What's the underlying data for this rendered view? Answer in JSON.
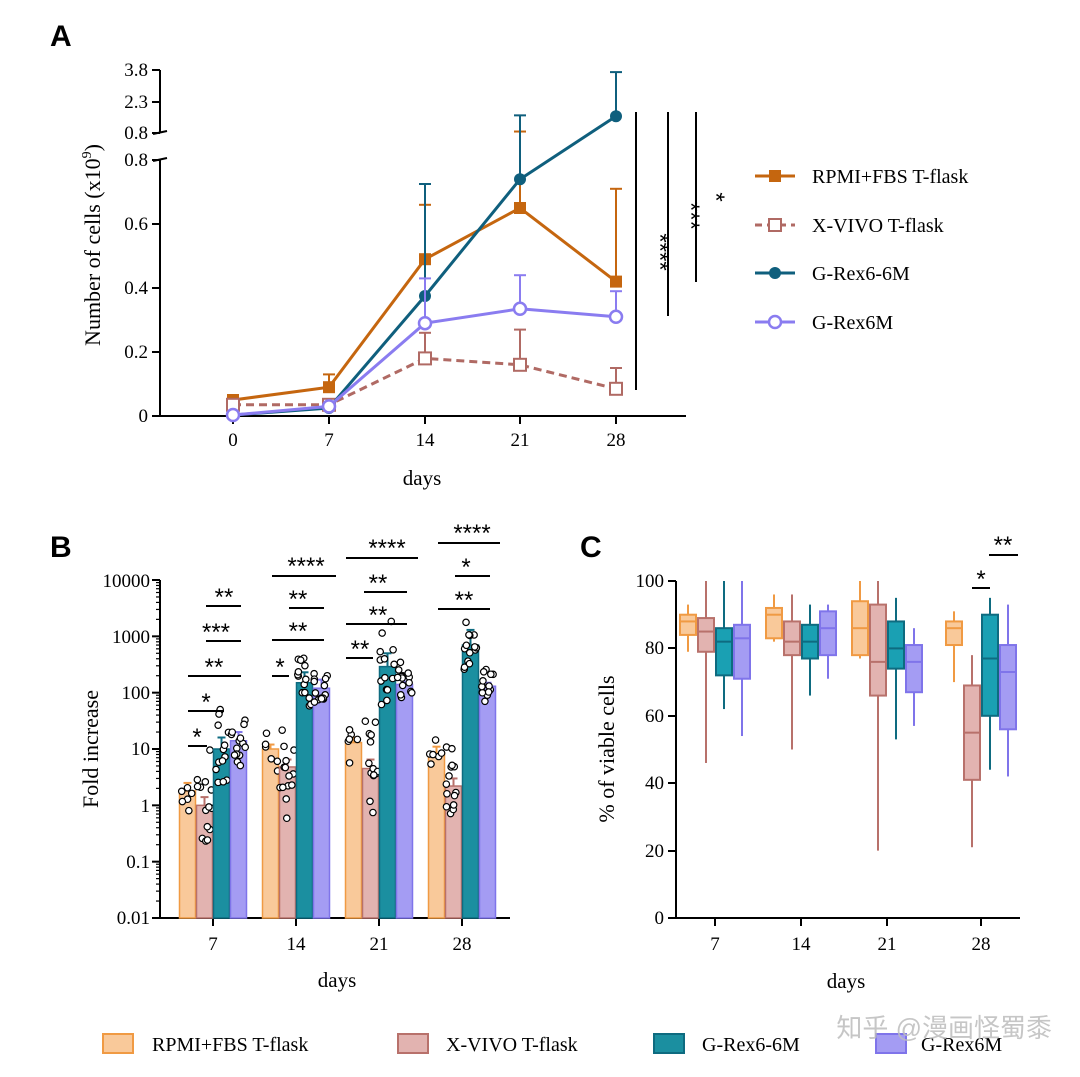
{
  "colors": {
    "rpmi": "#c5660f",
    "xvivo": "#b06a64",
    "grex66m": "#0f5f7d",
    "grex6m": "#8a7cf0",
    "rpmi_fill": "#f9c99a",
    "rpmi_edge": "#f09a43",
    "xvivo_fill": "#e2b3b0",
    "xvivo_edge": "#b8716b",
    "grex66m_fill": "#1b8fa0",
    "grex66m_edge": "#0e6b80",
    "grex6m_fill": "#a49cf3",
    "grex6m_edge": "#7f74ea"
  },
  "watermark": "知乎 @漫画怪蜀黍",
  "chart_data": [
    {
      "panel": "A",
      "type": "line",
      "xlabel": "days",
      "ylabel": "Number of cells (x10",
      "ylabel_sup": "9",
      "ylabel_end": ")",
      "x": [
        0,
        7,
        14,
        21,
        28
      ],
      "x_tick_labels": [
        "0",
        "7",
        "14",
        "21",
        "28"
      ],
      "ylim_lower": [
        0,
        0.8
      ],
      "ylim_upper": [
        0.8,
        3.8
      ],
      "y_tick_labels_lower": [
        "0",
        "0.2",
        "0.4",
        "0.6",
        "0.8"
      ],
      "y_tick_labels_upper": [
        "0.8",
        "2.3",
        "3.8"
      ],
      "series": [
        {
          "name": "RPMI+FBS T-flask",
          "key": "rpmi",
          "marker": "square-filled",
          "dash": false,
          "values": [
            0.05,
            0.09,
            0.49,
            0.65,
            0.42
          ],
          "err": [
            0.01,
            0.04,
            0.17,
            0.22,
            0.29
          ]
        },
        {
          "name": "X-VIVO T-flask",
          "key": "xvivo",
          "marker": "square-open",
          "dash": true,
          "values": [
            0.035,
            0.035,
            0.18,
            0.16,
            0.085
          ],
          "err": [
            0.0,
            0.0,
            0.08,
            0.11,
            0.065
          ]
        },
        {
          "name": "G-Rex6-6M",
          "key": "grex66m",
          "marker": "circle-filled",
          "dash": false,
          "values": [
            0.003,
            0.025,
            0.375,
            0.74,
            1.6
          ],
          "err": [
            0.0,
            0.005,
            0.35,
            0.9,
            2.1
          ]
        },
        {
          "name": "G-Rex6M",
          "key": "grex6m",
          "marker": "circle-open",
          "dash": false,
          "values": [
            0.003,
            0.03,
            0.29,
            0.335,
            0.31
          ],
          "err": [
            0.0,
            0.0,
            0.14,
            0.105,
            0.08
          ]
        }
      ],
      "significance": [
        "****",
        "***",
        "*"
      ]
    },
    {
      "panel": "B",
      "type": "bar",
      "xlabel": "days",
      "ylabel": "Fold increase",
      "scale": "log",
      "ylim": [
        0.01,
        10000
      ],
      "y_tick_labels": [
        "0.01",
        "0.1",
        "1",
        "10",
        "100",
        "1000",
        "10000"
      ],
      "categories": [
        "7",
        "14",
        "21",
        "28"
      ],
      "series": [
        {
          "name": "RPMI+FBS T-flask",
          "key": "rpmi",
          "values": [
            1.8,
            10,
            13,
            8.5
          ],
          "err_hi": [
            2.5,
            12,
            16,
            11
          ]
        },
        {
          "name": "X-VIVO T-flask",
          "key": "xvivo",
          "values": [
            1.0,
            4.8,
            4.5,
            2.2
          ],
          "err_hi": [
            1.4,
            6.5,
            6.5,
            3.0
          ]
        },
        {
          "name": "G-Rex6-6M",
          "key": "grex66m",
          "values": [
            10,
            150,
            290,
            700
          ],
          "err_hi": [
            16,
            230,
            500,
            1300
          ]
        },
        {
          "name": "G-Rex6M",
          "key": "grex6m",
          "values": [
            14,
            120,
            140,
            130
          ],
          "err_hi": [
            20,
            170,
            180,
            150
          ]
        }
      ],
      "significance": [
        {
          "day": "7",
          "labels": [
            "*",
            "*",
            "**",
            "***",
            "**"
          ]
        },
        {
          "day": "14",
          "labels": [
            "*",
            "**",
            "**",
            "****"
          ]
        },
        {
          "day": "21",
          "labels": [
            "**",
            "**",
            "**",
            "****"
          ]
        },
        {
          "day": "28",
          "labels": [
            "**",
            "*",
            "****"
          ]
        }
      ]
    },
    {
      "panel": "C",
      "type": "box",
      "xlabel": "days",
      "ylabel": "% of viable cells",
      "ylim": [
        0,
        100
      ],
      "y_tick_labels": [
        "0",
        "20",
        "40",
        "60",
        "80",
        "100"
      ],
      "categories": [
        "7",
        "14",
        "21",
        "28"
      ],
      "series": [
        {
          "name": "RPMI+FBS T-flask",
          "key": "rpmi",
          "boxes": [
            [
              79,
              84,
              88,
              90,
              93
            ],
            [
              82,
              83,
              90,
              92,
              96
            ],
            [
              77,
              78,
              86,
              94,
              100
            ],
            [
              70,
              81,
              86,
              88,
              91
            ]
          ]
        },
        {
          "name": "X-VIVO T-flask",
          "key": "xvivo",
          "boxes": [
            [
              46,
              79,
              85,
              89,
              100
            ],
            [
              50,
              78,
              82,
              88,
              96
            ],
            [
              20,
              66,
              76,
              93,
              100
            ],
            [
              21,
              41,
              55,
              69,
              78
            ]
          ]
        },
        {
          "name": "G-Rex6-6M",
          "key": "grex66m",
          "boxes": [
            [
              62,
              72,
              82,
              86,
              100
            ],
            [
              66,
              77,
              82,
              87,
              93
            ],
            [
              53,
              74,
              80,
              88,
              95
            ],
            [
              44,
              60,
              77,
              90,
              95
            ]
          ]
        },
        {
          "name": "G-Rex6M",
          "key": "grex6m",
          "boxes": [
            [
              54,
              71,
              83,
              87,
              100
            ],
            [
              71,
              78,
              86,
              91,
              93
            ],
            [
              57,
              67,
              76,
              81,
              86
            ],
            [
              42,
              56,
              73,
              81,
              93
            ]
          ]
        }
      ],
      "significance": [
        "*",
        "**"
      ]
    }
  ],
  "legend": {
    "items": [
      "RPMI+FBS T-flask",
      "X-VIVO T-flask",
      "G-Rex6-6M",
      "G-Rex6M"
    ]
  },
  "panel_labels": [
    "A",
    "B",
    "C"
  ]
}
